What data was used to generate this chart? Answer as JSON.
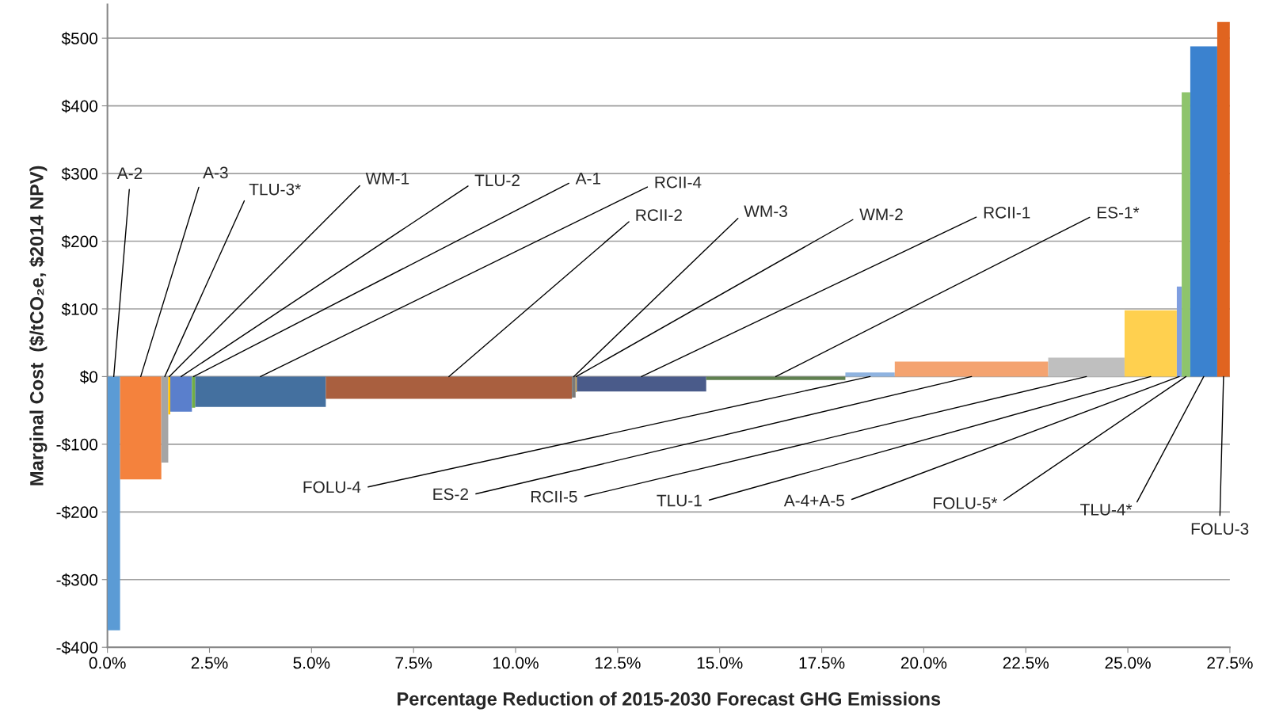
{
  "chart_data": {
    "type": "bar",
    "xlabel": "Percentage Reduction of 2015-2030 Forecast GHG Emissions",
    "ylabel": "Marginal Cost  ($/tCO₂e, $2014 NPV)",
    "x": [
      0.155,
      0.815,
      1.405,
      1.515,
      1.805,
      2.11,
      3.75,
      8.365,
      11.425,
      11.485,
      13.085,
      16.375,
      18.685,
      21.17,
      23.985,
      25.56,
      26.26,
      26.425,
      26.86,
      27.345
    ],
    "values": [
      -375,
      -152,
      -127,
      -56,
      -52,
      -46,
      -45,
      -33,
      -31,
      -23,
      -22,
      -5,
      6,
      22,
      28,
      98,
      133,
      420,
      488,
      524
    ],
    "colors": [
      "#5b9bd5",
      "#f4823d",
      "#a5a5a5",
      "#ffc000",
      "#5a7fcc",
      "#70ad47",
      "#44709f",
      "#a95f3f",
      "#7a7a7a",
      "#c9a14a",
      "#4a5b8a",
      "#5f8050",
      "#8fb3e0",
      "#f4a370",
      "#bfbfbf",
      "#ffd04f",
      "#7f9ee0",
      "#8ec46c",
      "#3b82cf",
      "#e06420"
    ],
    "xlim": [
      0,
      27.5
    ],
    "xticks": [
      {
        "value": 0,
        "label": "0.0%"
      },
      {
        "value": 2.5,
        "label": "2.5%"
      },
      {
        "value": 5,
        "label": "5.0%"
      },
      {
        "value": 7.5,
        "label": "7.5%"
      },
      {
        "value": 10,
        "label": "10.0%"
      },
      {
        "value": 12.5,
        "label": "12.5%"
      },
      {
        "value": 15,
        "label": "15.0%"
      },
      {
        "value": 17.5,
        "label": "17.5%"
      },
      {
        "value": 20,
        "label": "20.0%"
      },
      {
        "value": 22.5,
        "label": "22.5%"
      },
      {
        "value": 25,
        "label": "25.0%"
      },
      {
        "value": 27.5,
        "label": "27.5%"
      }
    ],
    "ylim": [
      -400,
      550
    ],
    "yticks": [
      {
        "value": -400,
        "label": "-$400"
      },
      {
        "value": -300,
        "label": "-$300"
      },
      {
        "value": -200,
        "label": "-$200"
      },
      {
        "value": -100,
        "label": "-$100"
      },
      {
        "value": 0,
        "label": "$0"
      },
      {
        "value": 100,
        "label": "$100"
      },
      {
        "value": 200,
        "label": "$200"
      },
      {
        "value": 300,
        "label": "$300"
      },
      {
        "value": 400,
        "label": "$400"
      },
      {
        "value": 500,
        "label": "$500"
      }
    ],
    "grid": "y",
    "legend": false,
    "annotations": [
      {
        "text": "A-2",
        "x": 0.155,
        "y": 0
      },
      {
        "text": "A-3",
        "x": 0.815,
        "y": 0
      },
      {
        "text": "TLU-3*",
        "x": 1.405,
        "y": 0
      },
      {
        "text": "WM-1",
        "x": 1.515,
        "y": 0
      },
      {
        "text": "TLU-2",
        "x": 1.805,
        "y": 0
      },
      {
        "text": "A-1",
        "x": 2.11,
        "y": 0
      },
      {
        "text": "RCII-4",
        "x": 3.75,
        "y": 0
      },
      {
        "text": "RCII-2",
        "x": 8.365,
        "y": 0
      },
      {
        "text": "WM-3",
        "x": 11.425,
        "y": 0
      },
      {
        "text": "WM-2",
        "x": 11.485,
        "y": 0
      },
      {
        "text": "RCII-1",
        "x": 13.085,
        "y": 0
      },
      {
        "text": "ES-1*",
        "x": 16.375,
        "y": 0
      },
      {
        "text": "FOLU-4",
        "x": 18.685,
        "y": 0
      },
      {
        "text": "ES-2",
        "x": 21.17,
        "y": 0
      },
      {
        "text": "RCII-5",
        "x": 23.985,
        "y": 0
      },
      {
        "text": "TLU-1",
        "x": 25.56,
        "y": 0
      },
      {
        "text": "A-4+A-5",
        "x": 26.26,
        "y": 0
      },
      {
        "text": "FOLU-5*",
        "x": 26.425,
        "y": 0
      },
      {
        "text": "TLU-4*",
        "x": 26.86,
        "y": 0
      },
      {
        "text": "FOLU-3",
        "x": 27.345,
        "y": 0
      }
    ]
  }
}
